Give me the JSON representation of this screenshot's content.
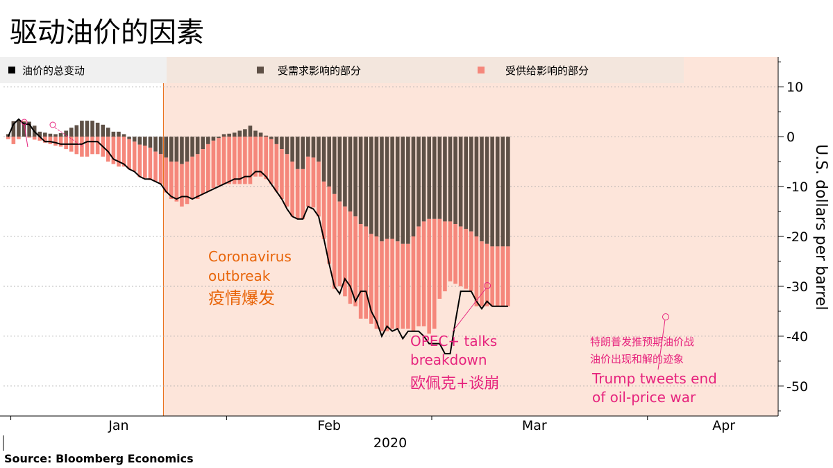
{
  "title": "驱动油价的因素",
  "source": "Source: Bloomberg Economics",
  "colors": {
    "total": "#000000",
    "demand": "#5e5046",
    "supply": "#f5877b",
    "shade": "#fde5da",
    "annotation_orange": "#e8650a",
    "annotation_pink": "#e6237d"
  },
  "chart_data": {
    "type": "bar",
    "ylabel": "U.S. dollars per barrel",
    "ylim": [
      -56,
      16
    ],
    "yticks": [
      10,
      0,
      -10,
      -20,
      -30,
      -40,
      -50
    ],
    "ytick_labels": [
      "10",
      "0",
      "-10",
      "-20",
      "-30",
      "-40",
      "-50"
    ],
    "grid": true,
    "legend": [
      {
        "key": "total",
        "label": "油价的总变动"
      },
      {
        "key": "demand",
        "label": "受需求影响的部分"
      },
      {
        "key": "supply",
        "label": "受供给影响的部分"
      }
    ],
    "xlabel": "2020",
    "x_tick_labels": [
      {
        "label": "Jan",
        "at": 21
      },
      {
        "label": "Feb",
        "at": 61
      },
      {
        "label": "Mar",
        "at": 100
      },
      {
        "label": "Apr",
        "at": 136
      }
    ],
    "shade_start_index": 30,
    "series": [
      {
        "name": "受需求影响的部分",
        "values": [
          0.5,
          3.1,
          3.3,
          3.0,
          3.0,
          2.2,
          1.0,
          0.8,
          0.6,
          0.5,
          0.7,
          1.2,
          1.8,
          2.3,
          3.2,
          3.2,
          3.2,
          2.8,
          2.4,
          1.8,
          1.0,
          1.0,
          0.5,
          -0.5,
          -1.0,
          -1.6,
          -1.8,
          -2.2,
          -3.0,
          -3.5,
          -4.2,
          -5.0,
          -5.0,
          -5.5,
          -5.0,
          -4.0,
          -3.5,
          -2.5,
          -1.5,
          -0.8,
          -0.3,
          0.5,
          0.6,
          0.8,
          1.2,
          1.5,
          2.2,
          1.2,
          0.8,
          0.2,
          -0.5,
          -1.5,
          -2.5,
          -3.5,
          -5.0,
          -6.5,
          -6.5,
          -4.0,
          -4.2,
          -5.0,
          -9.0,
          -10.0,
          -11.5,
          -13.0,
          -14.0,
          -15.0,
          -16.0,
          -17.5,
          -18.0,
          -19.5,
          -20.0,
          -21.0,
          -20.5,
          -20.5,
          -21.0,
          -21.5,
          -21.5,
          -20.0,
          -18.0,
          -17.0,
          -16.5,
          -16.5,
          -16.5,
          -17.0,
          -17.0,
          -17.5,
          -18.0,
          -18.5,
          -19.0,
          -20.0,
          -21.0,
          -21.5,
          -22.0,
          -22.0,
          -22.0,
          -22.0
        ]
      },
      {
        "name": "受供给影响的部分",
        "values": [
          -0.5,
          -1.5,
          -0.5,
          0.2,
          -0.2,
          -0.6,
          -0.8,
          -1.2,
          -1.5,
          -1.8,
          -2.0,
          -2.5,
          -3.0,
          -3.5,
          -4.0,
          -4.0,
          -3.5,
          -3.5,
          -4.0,
          -5.0,
          -5.5,
          -6.0,
          -6.0,
          -6.0,
          -6.0,
          -6.5,
          -6.5,
          -6.5,
          -6.0,
          -6.0,
          -7.0,
          -7.5,
          -8.0,
          -8.5,
          -8.5,
          -8.5,
          -9.0,
          -9.0,
          -9.5,
          -9.5,
          -9.5,
          -9.5,
          -9.5,
          -9.5,
          -9.5,
          -9.5,
          -9.5,
          -8.0,
          -8.0,
          -8.5,
          -9.0,
          -9.5,
          -10.0,
          -10.5,
          -11.0,
          -10.0,
          -10.0,
          -10.0,
          -10.0,
          -11.0,
          -11.5,
          -15.5,
          -19.0,
          -17.0,
          -18.0,
          -18.5,
          -18.0,
          -19.0,
          -18.5,
          -18.0,
          -18.5,
          -18.0,
          -18.5,
          -18.0,
          -17.5,
          -17.0,
          -17.0,
          -19.0,
          -20.0,
          -21.0,
          -23.0,
          -22.0,
          -16.0,
          -14.0,
          -12.0,
          -12.0,
          -12.0,
          -12.0,
          -12.0,
          -14.0,
          -13.0,
          -12.5,
          -12.0,
          -12.0,
          -12.0,
          -12.0
        ]
      },
      {
        "name": "油价的总变动",
        "values": [
          0,
          2.5,
          3.5,
          2.5,
          2.5,
          1.0,
          0,
          -1.0,
          -1.0,
          -1.2,
          -1.5,
          -1.5,
          -1.5,
          -1.5,
          -1.5,
          -1.0,
          -1.0,
          -1.0,
          -2.0,
          -3.0,
          -4.5,
          -5.0,
          -5.5,
          -6.5,
          -7.0,
          -8.0,
          -8.5,
          -8.5,
          -9.0,
          -9.5,
          -11.0,
          -12.0,
          -12.5,
          -12.0,
          -12.0,
          -12.5,
          -12.0,
          -11.5,
          -11.0,
          -10.5,
          -10.0,
          -9.5,
          -9.0,
          -8.5,
          -8.5,
          -8.0,
          -8.0,
          -7.0,
          -7.0,
          -8.0,
          -9.5,
          -11.0,
          -12.5,
          -14.5,
          -16.0,
          -16.5,
          -16.5,
          -14.0,
          -14.5,
          -16.0,
          -20.5,
          -25.5,
          -30.0,
          -31.5,
          -28.5,
          -30.0,
          -33.0,
          -31.0,
          -31.0,
          -35.0,
          -37.0,
          -40.0,
          -38.0,
          -39.0,
          -38.5,
          -40.5,
          -39.0,
          -39.0,
          -39.0,
          -40.0,
          -41.5,
          -41.5,
          -41.5,
          -43.5,
          -43.5,
          -37.0,
          -31.0,
          -31.0,
          -31.0,
          -33.0,
          -34.5,
          -33.0,
          -34.0,
          -34.0,
          -34.0,
          -34.0
        ]
      }
    ],
    "annotations": [
      {
        "id": "coronavirus",
        "lines": [
          "Coronavirus",
          "outbreak",
          "疫情爆发"
        ]
      },
      {
        "id": "opec",
        "lines": [
          "OPEC+ talks",
          "breakdown",
          "欧佩克+谈崩"
        ]
      },
      {
        "id": "trump",
        "lines": [
          "特朗普发推预期油价战",
          "油价出现和解的迹象",
          "Trump tweets end",
          "of oil-price war"
        ]
      }
    ]
  }
}
